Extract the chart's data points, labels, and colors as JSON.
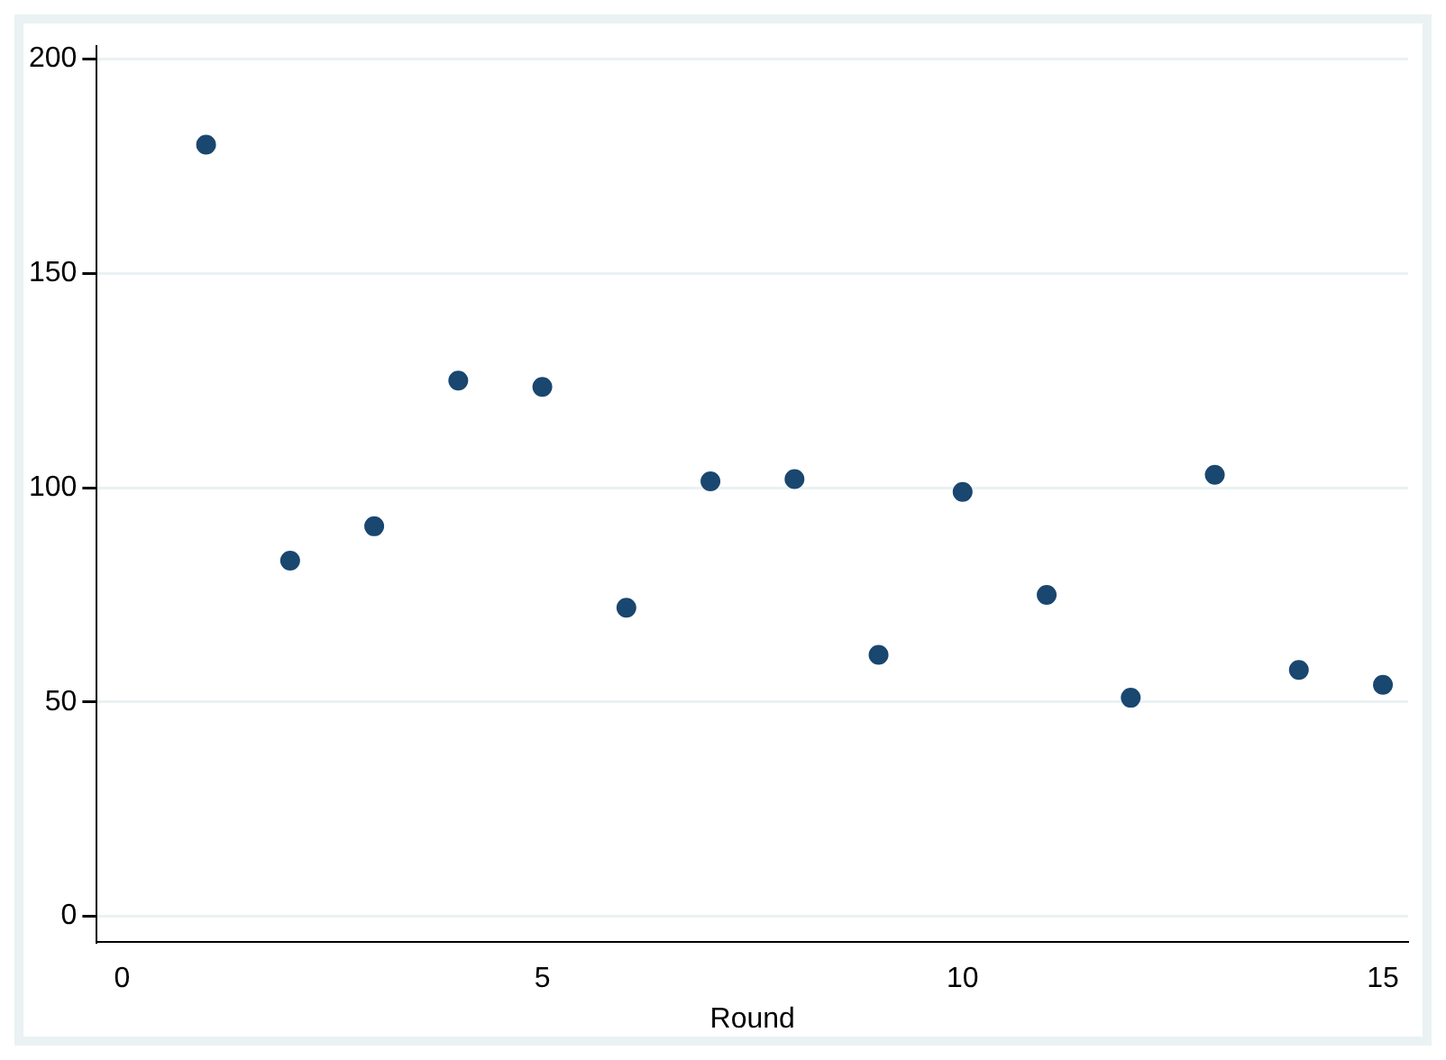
{
  "chart_data": {
    "type": "scatter",
    "xlabel": "Round",
    "x": [
      1,
      2,
      3,
      4,
      5,
      6,
      7,
      8,
      9,
      10,
      11,
      12,
      13,
      14,
      15
    ],
    "values": [
      180,
      83,
      91,
      125,
      123.5,
      72,
      101.5,
      102,
      61,
      99,
      75,
      51,
      103,
      57.5,
      54
    ],
    "color": "#1a476f",
    "marker": "circle",
    "xlim": [
      -0.3,
      15.3
    ],
    "xticks": [
      0,
      5,
      10,
      15
    ],
    "ylim": [
      -6,
      203
    ],
    "yticks": [
      0,
      50,
      100,
      150,
      200
    ],
    "grid": "y",
    "legend": false
  }
}
